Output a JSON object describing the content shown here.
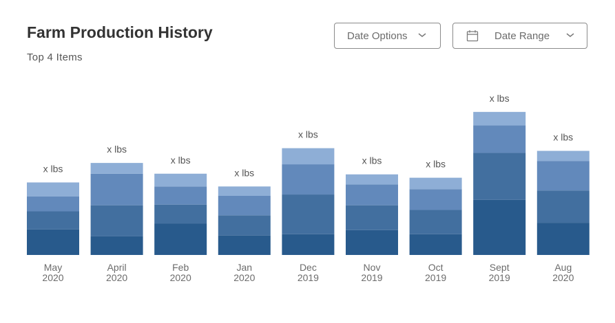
{
  "header": {
    "title": "Farm Production History",
    "subtitle": "Top 4 Items"
  },
  "controls": {
    "date_options_label": "Date Options",
    "date_range_label": "Date Range",
    "icons": [
      "chevron-down-icon",
      "calendar-icon"
    ]
  },
  "colors": {
    "segment_1": "#285a8c",
    "segment_2": "#426f9f",
    "segment_3": "#6289bb",
    "segment_4": "#8eaed6"
  },
  "chart_data": {
    "type": "bar",
    "stacked": true,
    "categories": [
      [
        "May",
        "2020"
      ],
      [
        "April",
        "2020"
      ],
      [
        "Feb",
        "2020"
      ],
      [
        "Jan",
        "2020"
      ],
      [
        "Dec",
        "2019"
      ],
      [
        "Nov",
        "2019"
      ],
      [
        "Oct",
        "2019"
      ],
      [
        "Sept",
        "2019"
      ],
      [
        "Aug",
        "2020"
      ]
    ],
    "series": [
      {
        "values": [
          38,
          28,
          47,
          29,
          31,
          37,
          31,
          82,
          48
        ]
      },
      {
        "values": [
          27,
          46,
          28,
          30,
          59,
          37,
          36,
          70,
          48
        ]
      },
      {
        "values": [
          22,
          47,
          27,
          29,
          45,
          31,
          31,
          41,
          44
        ]
      },
      {
        "values": [
          21,
          16,
          19,
          14,
          24,
          15,
          17,
          20,
          15
        ]
      }
    ],
    "data_labels": [
      "x lbs",
      "x lbs",
      "x lbs",
      "x lbs",
      "x lbs",
      "x lbs",
      "x lbs",
      "x lbs",
      "x lbs"
    ],
    "ylim": [
      0,
      220
    ],
    "grid": false,
    "legend": "none"
  }
}
